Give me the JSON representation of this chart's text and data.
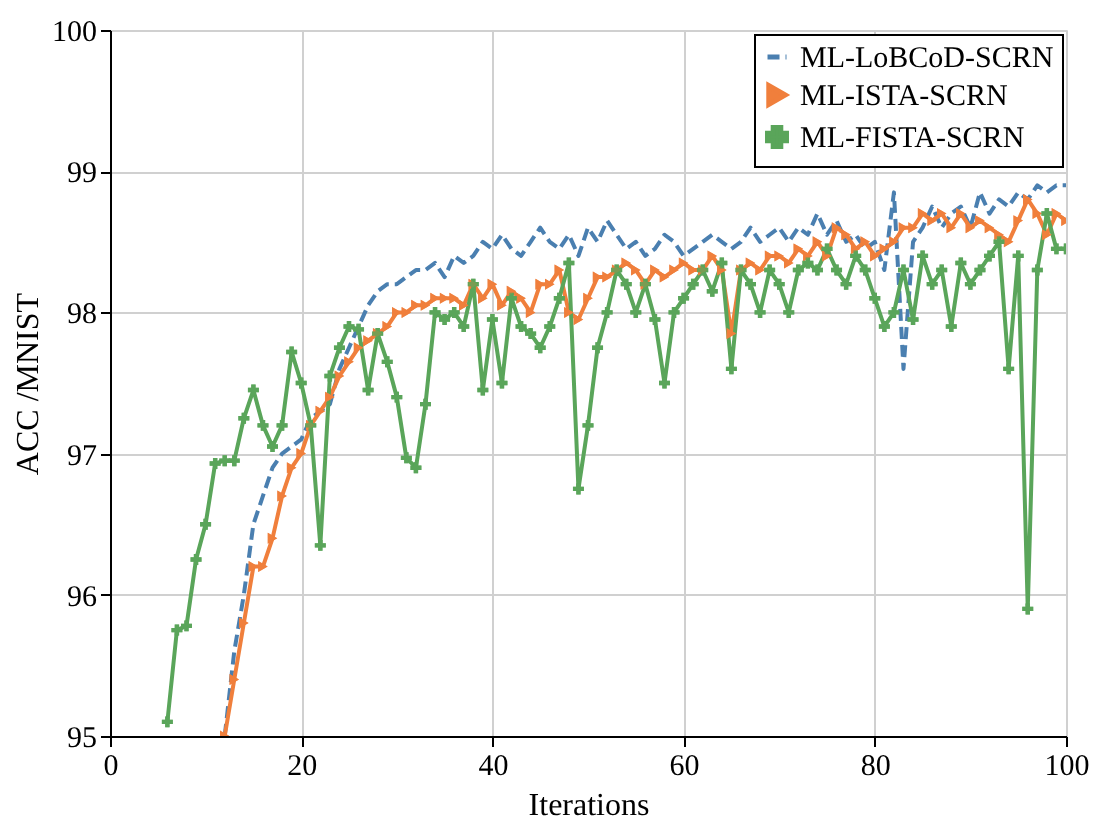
{
  "chart_data": {
    "type": "line",
    "xlabel": "Iterations",
    "ylabel": "ACC /MNIST",
    "xlim": [
      0,
      100
    ],
    "xticks": [
      0,
      20,
      40,
      60,
      80,
      100
    ],
    "ylim": [
      95,
      100
    ],
    "yticks": [
      95,
      96,
      97,
      98,
      99,
      100
    ],
    "grid": true,
    "legend": "top right",
    "series": [
      {
        "name": "ML-LoBCoD-SCRN",
        "color": "#4a7fb0",
        "line_style": "dashed",
        "marker": "none",
        "x": [
          12,
          13,
          14,
          15,
          16,
          17,
          18,
          19,
          20,
          21,
          22,
          23,
          24,
          25,
          26,
          27,
          28,
          29,
          30,
          31,
          32,
          33,
          34,
          35,
          36,
          37,
          38,
          39,
          40,
          41,
          42,
          43,
          44,
          45,
          46,
          47,
          48,
          49,
          50,
          51,
          52,
          53,
          54,
          55,
          56,
          57,
          58,
          59,
          60,
          61,
          62,
          63,
          64,
          65,
          66,
          67,
          68,
          69,
          70,
          71,
          72,
          73,
          74,
          75,
          76,
          77,
          78,
          79,
          80,
          81,
          82,
          83,
          84,
          85,
          86,
          87,
          88,
          89,
          90,
          91,
          92,
          93,
          94,
          95,
          96,
          97,
          98,
          99,
          100
        ],
        "values": [
          95.0,
          95.6,
          96.0,
          96.5,
          96.7,
          96.9,
          97.0,
          97.05,
          97.1,
          97.25,
          97.3,
          97.35,
          97.6,
          97.75,
          97.9,
          98.05,
          98.15,
          98.2,
          98.2,
          98.25,
          98.3,
          98.3,
          98.35,
          98.25,
          98.4,
          98.35,
          98.4,
          98.5,
          98.45,
          98.55,
          98.45,
          98.4,
          98.5,
          98.6,
          98.5,
          98.45,
          98.55,
          98.4,
          98.6,
          98.5,
          98.65,
          98.55,
          98.45,
          98.5,
          98.4,
          98.45,
          98.55,
          98.5,
          98.4,
          98.45,
          98.5,
          98.55,
          98.5,
          98.45,
          98.5,
          98.6,
          98.5,
          98.55,
          98.6,
          98.5,
          98.6,
          98.55,
          98.7,
          98.55,
          98.65,
          98.5,
          98.55,
          98.45,
          98.5,
          98.3,
          98.85,
          97.6,
          98.5,
          98.6,
          98.75,
          98.6,
          98.7,
          98.75,
          98.6,
          98.85,
          98.7,
          98.8,
          98.75,
          98.85,
          98.8,
          98.9,
          98.85,
          98.9,
          98.9
        ]
      },
      {
        "name": "ML-ISTA-SCRN",
        "color": "#f07f3c",
        "line_style": "solid",
        "marker": "triangle",
        "x": [
          12,
          13,
          14,
          15,
          16,
          17,
          18,
          19,
          20,
          21,
          22,
          23,
          24,
          25,
          26,
          27,
          28,
          29,
          30,
          31,
          32,
          33,
          34,
          35,
          36,
          37,
          38,
          39,
          40,
          41,
          42,
          43,
          44,
          45,
          46,
          47,
          48,
          49,
          50,
          51,
          52,
          53,
          54,
          55,
          56,
          57,
          58,
          59,
          60,
          61,
          62,
          63,
          64,
          65,
          66,
          67,
          68,
          69,
          70,
          71,
          72,
          73,
          74,
          75,
          76,
          77,
          78,
          79,
          80,
          81,
          82,
          83,
          84,
          85,
          86,
          87,
          88,
          89,
          90,
          91,
          92,
          93,
          94,
          95,
          96,
          97,
          98,
          99,
          100
        ],
        "values": [
          95.0,
          95.4,
          95.8,
          96.2,
          96.2,
          96.4,
          96.7,
          96.9,
          97.0,
          97.2,
          97.3,
          97.4,
          97.55,
          97.65,
          97.75,
          97.8,
          97.85,
          97.9,
          98.0,
          98.0,
          98.05,
          98.05,
          98.1,
          98.1,
          98.1,
          98.05,
          98.2,
          98.1,
          98.2,
          98.05,
          98.15,
          98.1,
          98.0,
          98.2,
          98.2,
          98.3,
          98.0,
          97.95,
          98.1,
          98.25,
          98.25,
          98.3,
          98.35,
          98.3,
          98.2,
          98.3,
          98.25,
          98.3,
          98.35,
          98.3,
          98.3,
          98.4,
          98.3,
          97.85,
          98.3,
          98.35,
          98.3,
          98.4,
          98.4,
          98.35,
          98.45,
          98.4,
          98.5,
          98.4,
          98.6,
          98.55,
          98.45,
          98.5,
          98.4,
          98.45,
          98.5,
          98.6,
          98.6,
          98.7,
          98.65,
          98.7,
          98.6,
          98.7,
          98.6,
          98.65,
          98.6,
          98.55,
          98.5,
          98.65,
          98.8,
          98.7,
          98.55,
          98.7,
          98.65
        ]
      },
      {
        "name": "ML-FISTA-SCRN",
        "color": "#5aa55a",
        "line_style": "solid",
        "marker": "cross",
        "x": [
          6,
          7,
          8,
          9,
          10,
          11,
          12,
          13,
          14,
          15,
          16,
          17,
          18,
          19,
          20,
          21,
          22,
          23,
          24,
          25,
          26,
          27,
          28,
          29,
          30,
          31,
          32,
          33,
          34,
          35,
          36,
          37,
          38,
          39,
          40,
          41,
          42,
          43,
          44,
          45,
          46,
          47,
          48,
          49,
          50,
          51,
          52,
          53,
          54,
          55,
          56,
          57,
          58,
          59,
          60,
          61,
          62,
          63,
          64,
          65,
          66,
          67,
          68,
          69,
          70,
          71,
          72,
          73,
          74,
          75,
          76,
          77,
          78,
          79,
          80,
          81,
          82,
          83,
          84,
          85,
          86,
          87,
          88,
          89,
          90,
          91,
          92,
          93,
          94,
          95,
          96,
          97,
          98,
          99,
          100
        ],
        "values": [
          95.1,
          95.75,
          95.78,
          96.25,
          96.5,
          96.93,
          96.95,
          96.95,
          97.25,
          97.45,
          97.2,
          97.05,
          97.2,
          97.72,
          97.5,
          97.2,
          96.35,
          97.55,
          97.75,
          97.9,
          97.88,
          97.45,
          97.85,
          97.65,
          97.4,
          96.97,
          96.9,
          97.35,
          98.0,
          97.95,
          98.0,
          97.9,
          98.2,
          97.45,
          97.95,
          97.5,
          98.1,
          97.9,
          97.85,
          97.75,
          97.9,
          98.1,
          98.35,
          96.75,
          97.2,
          97.75,
          98.0,
          98.3,
          98.2,
          98.0,
          98.2,
          97.95,
          97.5,
          98.0,
          98.1,
          98.2,
          98.3,
          98.15,
          98.35,
          97.6,
          98.3,
          98.2,
          98.0,
          98.3,
          98.2,
          98.0,
          98.3,
          98.35,
          98.3,
          98.45,
          98.3,
          98.2,
          98.4,
          98.3,
          98.1,
          97.9,
          98.0,
          98.3,
          97.95,
          98.4,
          98.2,
          98.3,
          97.9,
          98.35,
          98.2,
          98.3,
          98.4,
          98.5,
          97.6,
          98.4,
          95.9,
          98.3,
          98.7,
          98.45,
          98.45
        ]
      }
    ]
  }
}
